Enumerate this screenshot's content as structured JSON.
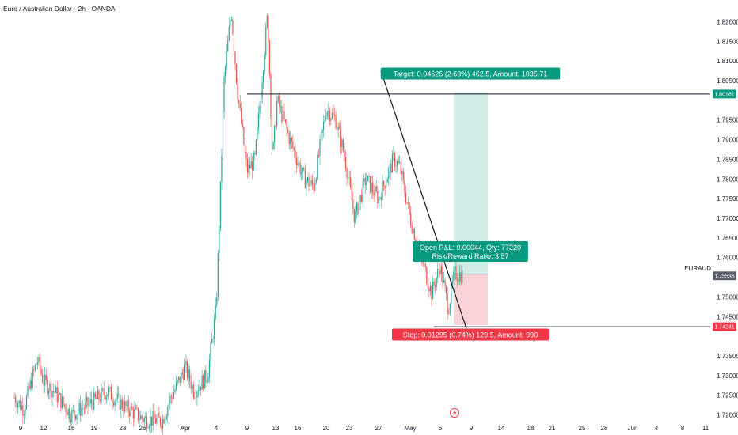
{
  "chart_title": "Euro / Australian Dollar · 2h · OANDA",
  "colors": {
    "up": "#26a69a",
    "down": "#ef5350",
    "target_zone": "#d2ede7",
    "stop_zone": "#f9d3d6",
    "target_label_bg": "#089981",
    "stop_label_bg": "#f23645",
    "price_tag_bg": "#5d606b",
    "level_tag_bg": "#f23645",
    "line": "#131722",
    "axis_text": "#131722"
  },
  "chart_data": {
    "type": "candlestick",
    "symbol": "EURAUD",
    "timeframe": "2h",
    "x_tick_labels": [
      "9",
      "12",
      "16",
      "19",
      "23",
      "26",
      "Apr",
      "4",
      "9",
      "13",
      "16",
      "20",
      "23",
      "27",
      "May",
      "6",
      "9",
      "14",
      "18",
      "21",
      "25",
      "28",
      "Jun",
      "4",
      "8",
      "11"
    ],
    "y_tick_labels": [
      "1.82000",
      "1.81500",
      "1.81000",
      "1.80500",
      "1.79500",
      "1.79000",
      "1.78500",
      "1.78000",
      "1.77500",
      "1.77000",
      "1.76500",
      "1.76000",
      "1.75000",
      "1.74500",
      "1.73500",
      "1.73000",
      "1.72500",
      "1.72000"
    ],
    "ylim": [
      1.7185,
      1.8235
    ],
    "price_path": [
      {
        "t": "Mar 6",
        "close": 1.7245
      },
      {
        "t": "Mar 8",
        "close": 1.7215
      },
      {
        "t": "Mar 11",
        "close": 1.734
      },
      {
        "t": "Mar 12",
        "close": 1.7285
      },
      {
        "t": "Mar 14",
        "close": 1.7255
      },
      {
        "t": "Mar 17",
        "close": 1.72
      },
      {
        "t": "Mar 19",
        "close": 1.7235
      },
      {
        "t": "Mar 21",
        "close": 1.726
      },
      {
        "t": "Mar 23",
        "close": 1.7225
      },
      {
        "t": "Mar 26",
        "close": 1.719
      },
      {
        "t": "Mar 28",
        "close": 1.7185
      },
      {
        "t": "Mar 30",
        "close": 1.724
      },
      {
        "t": "Apr 1",
        "close": 1.732
      },
      {
        "t": "Apr 2",
        "close": 1.726
      },
      {
        "t": "Apr 3",
        "close": 1.73
      },
      {
        "t": "Apr 4",
        "close": 1.747
      },
      {
        "t": "Apr 5",
        "close": 1.775
      },
      {
        "t": "Apr 6",
        "close": 1.805
      },
      {
        "t": "Apr 7",
        "close": 1.823
      },
      {
        "t": "Apr 8",
        "close": 1.802
      },
      {
        "t": "Apr 9",
        "close": 1.782
      },
      {
        "t": "Apr 10",
        "close": 1.785
      },
      {
        "t": "Apr 11",
        "close": 1.822
      },
      {
        "t": "Apr 12",
        "close": 1.785
      },
      {
        "t": "Apr 13",
        "close": 1.8
      },
      {
        "t": "Apr 15",
        "close": 1.79
      },
      {
        "t": "Apr 17",
        "close": 1.78
      },
      {
        "t": "Apr 18",
        "close": 1.778
      },
      {
        "t": "Apr 20",
        "close": 1.798
      },
      {
        "t": "Apr 21",
        "close": 1.795
      },
      {
        "t": "Apr 22",
        "close": 1.786
      },
      {
        "t": "Apr 24",
        "close": 1.77
      },
      {
        "t": "Apr 25",
        "close": 1.78
      },
      {
        "t": "Apr 27",
        "close": 1.775
      },
      {
        "t": "Apr 29",
        "close": 1.785
      },
      {
        "t": "Apr 30",
        "close": 1.783
      },
      {
        "t": "May 1",
        "close": 1.77
      },
      {
        "t": "May 3",
        "close": 1.76
      },
      {
        "t": "May 5",
        "close": 1.751
      },
      {
        "t": "May 6",
        "close": 1.758
      },
      {
        "t": "May 7",
        "close": 1.747
      },
      {
        "t": "May 8",
        "close": 1.756
      },
      {
        "t": "May 9",
        "close": 1.7556
      }
    ],
    "horizontal_levels": [
      {
        "price": 1.80161,
        "label": "1.80161"
      },
      {
        "price": 1.74241,
        "label": "1.74241"
      }
    ],
    "current_price": {
      "symbol": "EURAUD",
      "price": 1.75536,
      "label": "1.75536"
    },
    "position": {
      "side": "long",
      "entry": 1.7558,
      "target": 1.80205,
      "stop": 1.74285,
      "target_text": "Target: 0.04625 (2.63%) 462.5, Amount: 1035.71",
      "open_pl_text": "Open P&L: 0.00044, Qty: 77220",
      "risk_reward_text": "Risk/Reward Ratio: 3.57",
      "stop_text": "Stop: 0.01295 (0.74%) 129.5, Amount: 990"
    },
    "trendline": {
      "from": {
        "t": "Apr 30",
        "price": 1.8075
      },
      "to": {
        "t": "May 9",
        "price": 1.742
      }
    },
    "grid": false,
    "events": [
      {
        "t": "May 8",
        "icon": "lightning-icon"
      }
    ]
  }
}
